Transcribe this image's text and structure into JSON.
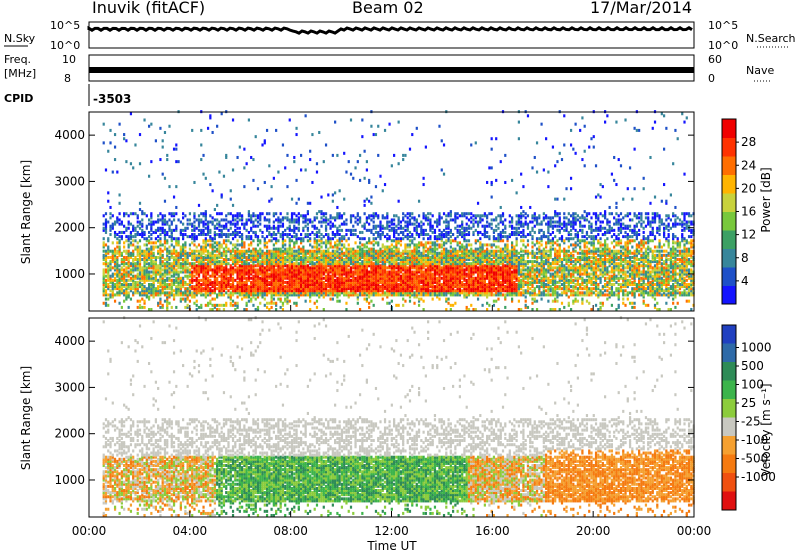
{
  "header": {
    "station": "Inuvik (fitACF)",
    "beam": "Beam 02",
    "date": "17/Mar/2014"
  },
  "sky_panel": {
    "left_label": "N.Sky",
    "right_label": "N.Search",
    "ticks_left": [
      "10^5",
      "10^0"
    ],
    "ticks_right": [
      "10^5",
      "10^0"
    ]
  },
  "freq_panel": {
    "left_label_line1": "Freq.",
    "left_label_line2": "[MHz]",
    "right_label": "Nave",
    "ticks_left": [
      "10",
      "8"
    ],
    "ticks_right": [
      "60",
      "0"
    ]
  },
  "cpid": {
    "label": "CPID",
    "value": "-3503"
  },
  "chart_data": [
    {
      "type": "heatmap",
      "name": "power",
      "ylabel": "Slant Range [km]",
      "xlabel": "",
      "x_ticks": [
        "00:00",
        "04:00",
        "08:00",
        "12:00",
        "16:00",
        "20:00",
        "00:00"
      ],
      "y_ticks": [
        1000,
        2000,
        3000,
        4000
      ],
      "ylim": [
        200,
        4500
      ],
      "xlim_hours": [
        0,
        24
      ],
      "colorbar": {
        "label": "Power [dB]",
        "ticks": [
          "4",
          "8",
          "12",
          "16",
          "20",
          "24",
          "28"
        ],
        "colors": [
          "#1414ff",
          "#1e50c8",
          "#37869b",
          "#3ca064",
          "#78c83c",
          "#c8d23c",
          "#ffb400",
          "#ff6e00",
          "#ff3200",
          "#f00000"
        ]
      }
    },
    {
      "type": "heatmap",
      "name": "velocity",
      "ylabel": "Slant Range [km]",
      "xlabel": "Time UT",
      "x_ticks": [
        "00:00",
        "04:00",
        "08:00",
        "12:00",
        "16:00",
        "20:00",
        "00:00"
      ],
      "y_ticks": [
        1000,
        2000,
        3000,
        4000
      ],
      "ylim": [
        200,
        4500
      ],
      "xlim_hours": [
        0,
        24
      ],
      "colorbar": {
        "label": "Velocity [m s⁻¹]",
        "ticks": [
          "1000",
          "500",
          "100",
          "25",
          "-25",
          "-100",
          "-500",
          "-1000"
        ],
        "colors": [
          "#2040c0",
          "#2e6aa8",
          "#2e8b57",
          "#3cb44b",
          "#8ccc3c",
          "#c8c8c0",
          "#f5a030",
          "#f57a10",
          "#f05010",
          "#e01010"
        ]
      }
    }
  ]
}
